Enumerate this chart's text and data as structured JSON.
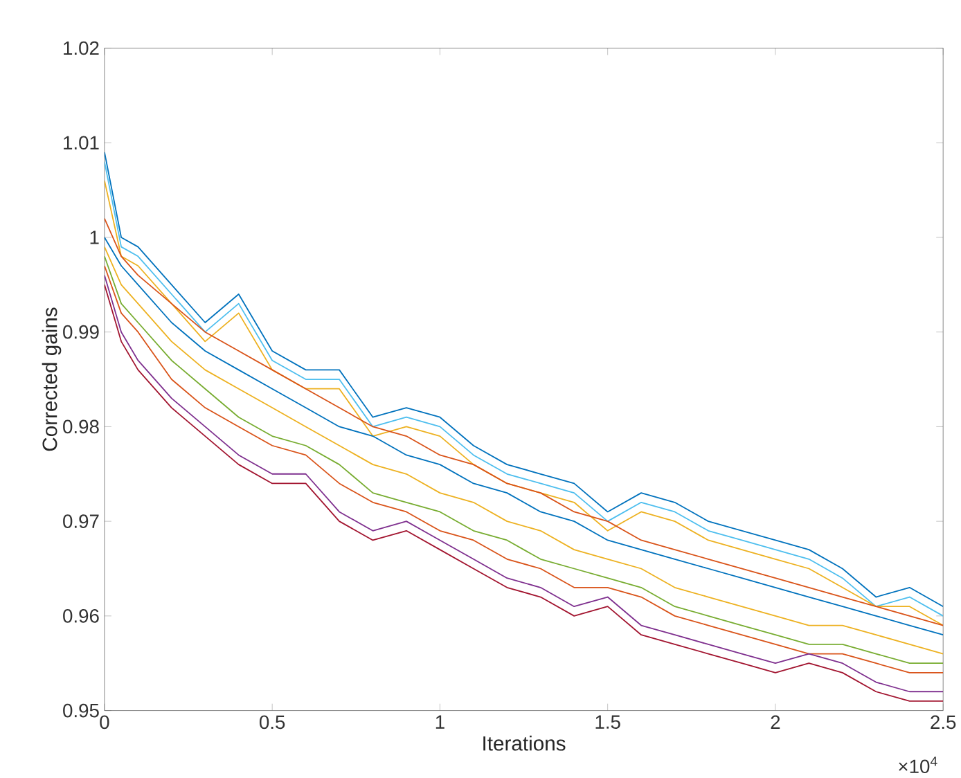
{
  "chart_data": {
    "type": "line",
    "xlabel": "Iterations",
    "ylabel": "Corrected gains",
    "annotations": [
      "×10$^{4}$"
    ],
    "x": [
      0,
      0.05,
      0.1,
      0.2,
      0.3,
      0.4,
      0.5,
      0.6,
      0.7,
      0.8,
      0.9,
      1,
      1.1,
      1.2,
      1.3,
      1.4,
      1.5,
      1.6,
      1.7,
      1.8,
      1.9,
      2,
      2.1,
      2.2,
      2.3,
      2.4,
      2.5
    ],
    "xlim": [
      0,
      2.5
    ],
    "xticks": [
      0,
      0.5,
      1,
      1.5,
      2,
      2.5
    ],
    "ylim": [
      0.95,
      1.02
    ],
    "yticks": [
      0.95,
      0.96,
      0.97,
      0.98,
      0.99,
      1,
      1.01,
      1.02
    ],
    "series": [
      {
        "color": "#0072bd",
        "values": [
          1.009,
          1.0,
          0.999,
          0.995,
          0.991,
          0.994,
          0.988,
          0.986,
          0.986,
          0.981,
          0.982,
          0.981,
          0.978,
          0.976,
          0.975,
          0.974,
          0.971,
          0.973,
          0.972,
          0.97,
          0.969,
          0.968,
          0.967,
          0.965,
          0.962,
          0.963,
          0.961
        ]
      },
      {
        "color": "#4dbeee",
        "values": [
          1.008,
          0.999,
          0.998,
          0.994,
          0.99,
          0.993,
          0.987,
          0.985,
          0.985,
          0.98,
          0.981,
          0.98,
          0.977,
          0.975,
          0.974,
          0.973,
          0.97,
          0.972,
          0.971,
          0.969,
          0.968,
          0.967,
          0.966,
          0.964,
          0.961,
          0.962,
          0.96
        ]
      },
      {
        "color": "#edb120",
        "values": [
          1.006,
          0.998,
          0.997,
          0.993,
          0.989,
          0.992,
          0.986,
          0.984,
          0.984,
          0.979,
          0.98,
          0.979,
          0.976,
          0.974,
          0.973,
          0.972,
          0.969,
          0.971,
          0.97,
          0.968,
          0.967,
          0.966,
          0.965,
          0.963,
          0.961,
          0.961,
          0.959
        ]
      },
      {
        "color": "#d95319",
        "values": [
          1.002,
          0.998,
          0.996,
          0.993,
          0.99,
          0.988,
          0.986,
          0.984,
          0.982,
          0.98,
          0.979,
          0.977,
          0.976,
          0.974,
          0.973,
          0.971,
          0.97,
          0.968,
          0.967,
          0.966,
          0.965,
          0.964,
          0.963,
          0.962,
          0.961,
          0.96,
          0.959
        ]
      },
      {
        "color": "#0072bd",
        "values": [
          1.0,
          0.997,
          0.995,
          0.991,
          0.988,
          0.986,
          0.984,
          0.982,
          0.98,
          0.979,
          0.977,
          0.976,
          0.974,
          0.973,
          0.971,
          0.97,
          0.968,
          0.967,
          0.966,
          0.965,
          0.964,
          0.963,
          0.962,
          0.961,
          0.96,
          0.959,
          0.958
        ]
      },
      {
        "color": "#edb120",
        "values": [
          0.999,
          0.995,
          0.993,
          0.989,
          0.986,
          0.984,
          0.982,
          0.98,
          0.978,
          0.976,
          0.975,
          0.973,
          0.972,
          0.97,
          0.969,
          0.967,
          0.966,
          0.965,
          0.963,
          0.962,
          0.961,
          0.96,
          0.959,
          0.959,
          0.958,
          0.957,
          0.956
        ]
      },
      {
        "color": "#77ac30",
        "values": [
          0.998,
          0.993,
          0.991,
          0.987,
          0.984,
          0.981,
          0.979,
          0.978,
          0.976,
          0.973,
          0.972,
          0.971,
          0.969,
          0.968,
          0.966,
          0.965,
          0.964,
          0.963,
          0.961,
          0.96,
          0.959,
          0.958,
          0.957,
          0.957,
          0.956,
          0.955,
          0.955
        ]
      },
      {
        "color": "#d95319",
        "values": [
          0.997,
          0.992,
          0.99,
          0.985,
          0.982,
          0.98,
          0.978,
          0.977,
          0.974,
          0.972,
          0.971,
          0.969,
          0.968,
          0.966,
          0.965,
          0.963,
          0.963,
          0.962,
          0.96,
          0.959,
          0.958,
          0.957,
          0.956,
          0.956,
          0.955,
          0.954,
          0.954
        ]
      },
      {
        "color": "#7e2f8e",
        "values": [
          0.996,
          0.99,
          0.987,
          0.983,
          0.98,
          0.977,
          0.975,
          0.975,
          0.971,
          0.969,
          0.97,
          0.968,
          0.966,
          0.964,
          0.963,
          0.961,
          0.962,
          0.959,
          0.958,
          0.957,
          0.956,
          0.955,
          0.956,
          0.955,
          0.953,
          0.952,
          0.952
        ]
      },
      {
        "color": "#a2142f",
        "values": [
          0.995,
          0.989,
          0.986,
          0.982,
          0.979,
          0.976,
          0.974,
          0.974,
          0.97,
          0.968,
          0.969,
          0.967,
          0.965,
          0.963,
          0.962,
          0.96,
          0.961,
          0.958,
          0.957,
          0.956,
          0.955,
          0.954,
          0.955,
          0.954,
          0.952,
          0.951,
          0.951
        ]
      }
    ]
  }
}
